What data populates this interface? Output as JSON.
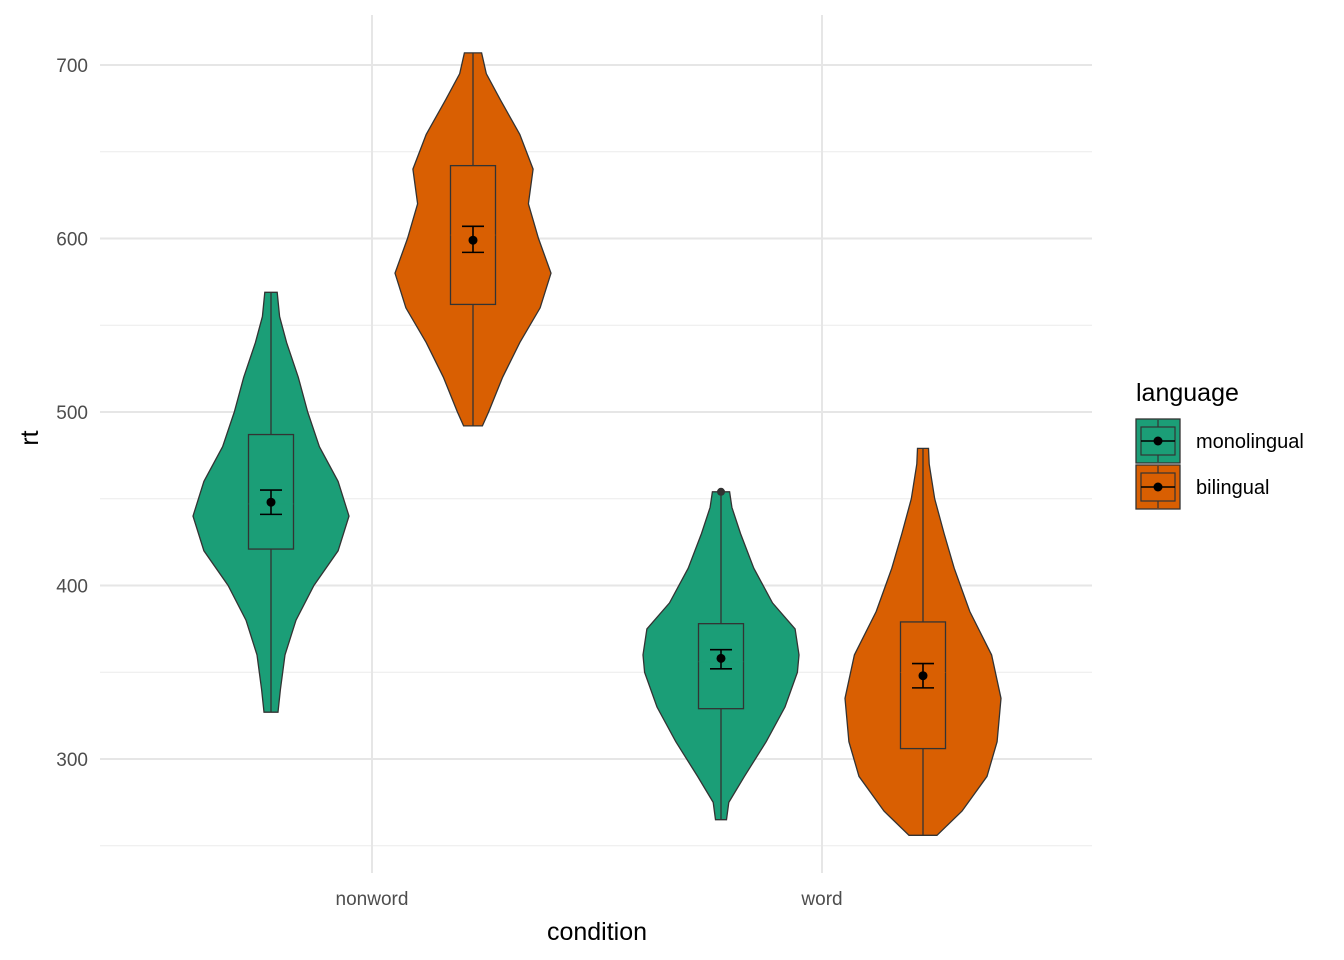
{
  "chart_data": {
    "type": "violin",
    "xlabel": "condition",
    "ylabel": "rt",
    "categories": [
      "nonword",
      "word"
    ],
    "ylim": [
      240,
      720
    ],
    "yticks": [
      300,
      400,
      500,
      600,
      700
    ],
    "grid": true,
    "legend": {
      "title": "language",
      "position": "right",
      "entries": [
        {
          "label": "monolingual",
          "color": "#1B9E77"
        },
        {
          "label": "bilingual",
          "color": "#D95F02"
        }
      ]
    },
    "series": [
      {
        "name": "monolingual",
        "color": "#1B9E77",
        "groups": [
          {
            "category": "nonword",
            "min": 327,
            "max": 569,
            "q1": 421,
            "median": 447,
            "q3": 487,
            "mean": 448,
            "ci_low": 441,
            "ci_high": 455,
            "density": [
              [
                327,
                0.09
              ],
              [
                340,
                0.12
              ],
              [
                360,
                0.18
              ],
              [
                380,
                0.32
              ],
              [
                400,
                0.55
              ],
              [
                420,
                0.86
              ],
              [
                440,
                1.0
              ],
              [
                460,
                0.86
              ],
              [
                480,
                0.62
              ],
              [
                500,
                0.47
              ],
              [
                520,
                0.35
              ],
              [
                540,
                0.2
              ],
              [
                555,
                0.11
              ],
              [
                569,
                0.08
              ]
            ]
          },
          {
            "category": "word",
            "min": 265,
            "max": 454,
            "q1": 329,
            "median": 356,
            "q3": 378,
            "mean": 358,
            "ci_low": 352,
            "ci_high": 363,
            "outliers": [
              454
            ],
            "density": [
              [
                265,
                0.07
              ],
              [
                275,
                0.1
              ],
              [
                290,
                0.3
              ],
              [
                310,
                0.58
              ],
              [
                330,
                0.82
              ],
              [
                350,
                0.98
              ],
              [
                360,
                1.0
              ],
              [
                375,
                0.95
              ],
              [
                390,
                0.66
              ],
              [
                410,
                0.42
              ],
              [
                430,
                0.25
              ],
              [
                445,
                0.14
              ],
              [
                454,
                0.11
              ]
            ]
          }
        ]
      },
      {
        "name": "bilingual",
        "color": "#D95F02",
        "groups": [
          {
            "category": "nonword",
            "min": 492,
            "max": 707,
            "q1": 562,
            "median": 602,
            "q3": 642,
            "mean": 599,
            "ci_low": 592,
            "ci_high": 607,
            "density": [
              [
                492,
                0.12
              ],
              [
                500,
                0.2
              ],
              [
                520,
                0.38
              ],
              [
                540,
                0.6
              ],
              [
                560,
                0.86
              ],
              [
                580,
                1.0
              ],
              [
                600,
                0.84
              ],
              [
                620,
                0.71
              ],
              [
                640,
                0.77
              ],
              [
                660,
                0.6
              ],
              [
                680,
                0.35
              ],
              [
                695,
                0.17
              ],
              [
                707,
                0.11
              ]
            ]
          },
          {
            "category": "word",
            "min": 256,
            "max": 479,
            "q1": 306,
            "median": 350,
            "q3": 379,
            "mean": 348,
            "ci_low": 341,
            "ci_high": 355,
            "density": [
              [
                256,
                0.18
              ],
              [
                270,
                0.5
              ],
              [
                290,
                0.82
              ],
              [
                310,
                0.95
              ],
              [
                335,
                1.0
              ],
              [
                360,
                0.88
              ],
              [
                385,
                0.6
              ],
              [
                410,
                0.4
              ],
              [
                430,
                0.27
              ],
              [
                450,
                0.15
              ],
              [
                470,
                0.08
              ],
              [
                479,
                0.07
              ]
            ]
          }
        ]
      }
    ]
  }
}
